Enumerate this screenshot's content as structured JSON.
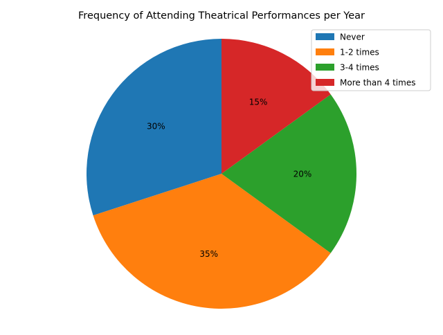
{
  "chart_data": {
    "type": "pie",
    "title": "Frequency of Attending Theatrical Performances per Year",
    "categories": [
      "Never",
      "1-2 times",
      "3-4 times",
      "More than 4 times"
    ],
    "values": [
      30,
      35,
      20,
      15
    ],
    "labels": [
      "30%",
      "35%",
      "20%",
      "15%"
    ],
    "colors": [
      "#1f77b4",
      "#ff7f0e",
      "#2ca02c",
      "#d62728"
    ],
    "start_angle_deg": 90,
    "direction": "counterclockwise",
    "legend_position": "top-right"
  }
}
